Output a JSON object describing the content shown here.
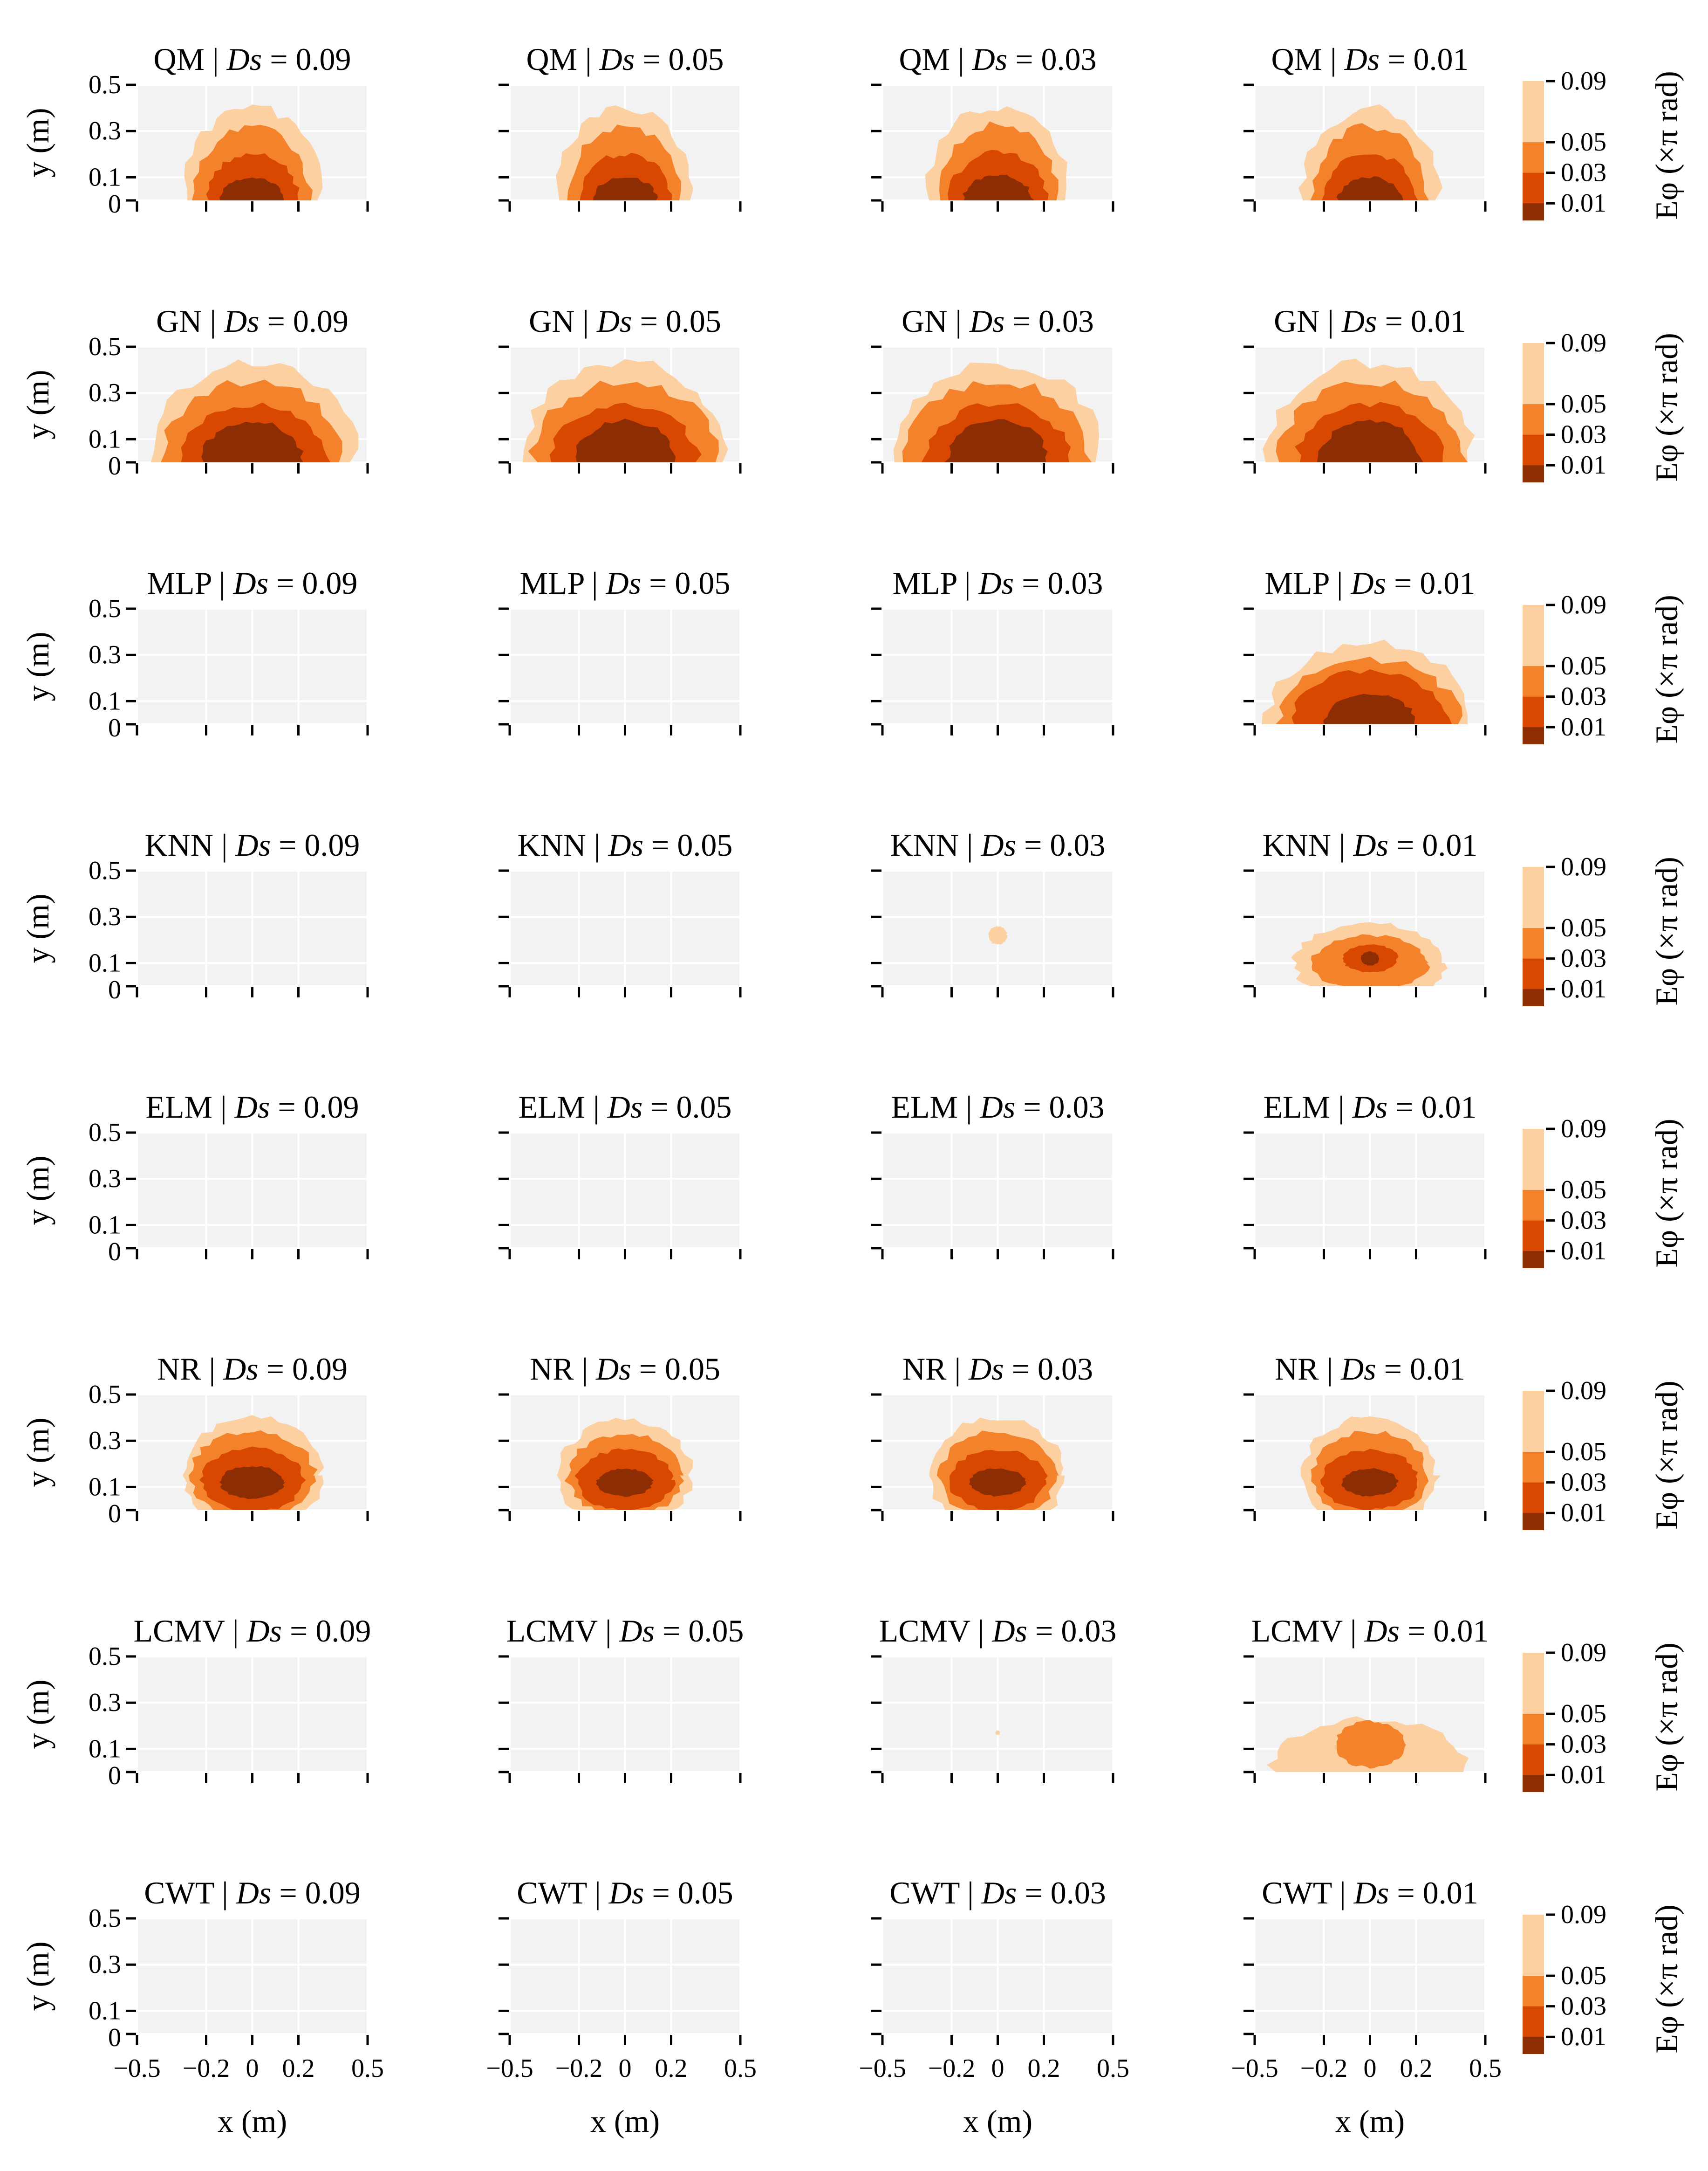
{
  "figure": {
    "colors": {
      "panel_bg": "#f2f2f2",
      "grid": "#ffffff",
      "level_1": "#8c2d04",
      "level_2": "#d94801",
      "level_3": "#f3822b",
      "level_4": "#fdd0a2"
    },
    "x_axis_label": "x (m)",
    "y_axis_label": "y (m)",
    "x_ticks": [
      "−0.5",
      "−0.2",
      "0",
      "0.2",
      "0.5"
    ],
    "y_ticks": [
      "0.5",
      "0.3",
      "0.1",
      "0"
    ],
    "colorbar": {
      "ticks": [
        "0.09",
        "0.05",
        "0.03",
        "0.01"
      ],
      "label": "Eφ (×π rad)"
    }
  },
  "chart_data": {
    "type": "contour",
    "description": "Phase error E_phi contour maps for 8 methods at 4 noise levels D_s; x in [-0.5, 0.5] m, y in [0, 0.5] m",
    "x_range": [
      -0.5,
      0.5
    ],
    "y_range": [
      0,
      0.5
    ],
    "x_ticks": [
      -0.5,
      -0.2,
      0,
      0.2,
      0.5
    ],
    "y_ticks": [
      0,
      0.1,
      0.3,
      0.5
    ],
    "contour_levels": [
      0.01,
      0.03,
      0.05,
      0.09
    ],
    "methods": [
      "QM",
      "GN",
      "MLP",
      "KNN",
      "ELM",
      "NR",
      "LCMV",
      "CWT"
    ],
    "noise_levels": [
      "0.09",
      "0.05",
      "0.03",
      "0.01"
    ],
    "panels": [
      {
        "method": "QM",
        "ds": "0.09",
        "regions": [
          {
            "level": 4,
            "rx": 0.3,
            "ry": 0.4,
            "cy": 0
          },
          {
            "level": 3,
            "rx": 0.25,
            "ry": 0.32,
            "cy": 0
          },
          {
            "level": 2,
            "rx": 0.2,
            "ry": 0.2,
            "cy": 0
          },
          {
            "level": 1,
            "rx": 0.14,
            "ry": 0.1,
            "cy": 0
          }
        ]
      },
      {
        "method": "QM",
        "ds": "0.05",
        "regions": [
          {
            "level": 4,
            "rx": 0.3,
            "ry": 0.4,
            "cy": 0
          },
          {
            "level": 3,
            "rx": 0.25,
            "ry": 0.32,
            "cy": 0
          },
          {
            "level": 2,
            "rx": 0.2,
            "ry": 0.2,
            "cy": 0
          },
          {
            "level": 1,
            "rx": 0.14,
            "ry": 0.1,
            "cy": 0
          }
        ]
      },
      {
        "method": "QM",
        "ds": "0.03",
        "regions": [
          {
            "level": 4,
            "rx": 0.31,
            "ry": 0.41,
            "cy": 0
          },
          {
            "level": 3,
            "rx": 0.26,
            "ry": 0.33,
            "cy": 0
          },
          {
            "level": 2,
            "rx": 0.21,
            "ry": 0.21,
            "cy": 0
          },
          {
            "level": 1,
            "rx": 0.15,
            "ry": 0.11,
            "cy": 0
          }
        ]
      },
      {
        "method": "QM",
        "ds": "0.01",
        "regions": [
          {
            "level": 4,
            "rx": 0.3,
            "ry": 0.4,
            "cy": 0
          },
          {
            "level": 3,
            "rx": 0.25,
            "ry": 0.32,
            "cy": 0
          },
          {
            "level": 2,
            "rx": 0.2,
            "ry": 0.2,
            "cy": 0
          },
          {
            "level": 1,
            "rx": 0.14,
            "ry": 0.1,
            "cy": 0
          }
        ]
      },
      {
        "method": "GN",
        "ds": "0.09",
        "regions": [
          {
            "level": 4,
            "rx": 0.45,
            "ry": 0.43,
            "cy": 0
          },
          {
            "level": 3,
            "rx": 0.4,
            "ry": 0.35,
            "cy": 0
          },
          {
            "level": 2,
            "rx": 0.32,
            "ry": 0.25,
            "cy": 0
          },
          {
            "level": 1,
            "rx": 0.22,
            "ry": 0.18,
            "cy": 0
          }
        ]
      },
      {
        "method": "GN",
        "ds": "0.05",
        "regions": [
          {
            "level": 4,
            "rx": 0.45,
            "ry": 0.43,
            "cy": 0
          },
          {
            "level": 3,
            "rx": 0.4,
            "ry": 0.35,
            "cy": 0
          },
          {
            "level": 2,
            "rx": 0.32,
            "ry": 0.25,
            "cy": 0
          },
          {
            "level": 1,
            "rx": 0.22,
            "ry": 0.18,
            "cy": 0
          }
        ]
      },
      {
        "method": "GN",
        "ds": "0.03",
        "regions": [
          {
            "level": 4,
            "rx": 0.45,
            "ry": 0.43,
            "cy": 0
          },
          {
            "level": 3,
            "rx": 0.4,
            "ry": 0.35,
            "cy": 0
          },
          {
            "level": 2,
            "rx": 0.32,
            "ry": 0.25,
            "cy": 0
          },
          {
            "level": 1,
            "rx": 0.22,
            "ry": 0.18,
            "cy": 0
          }
        ]
      },
      {
        "method": "GN",
        "ds": "0.01",
        "regions": [
          {
            "level": 4,
            "rx": 0.45,
            "ry": 0.43,
            "cy": 0
          },
          {
            "level": 3,
            "rx": 0.4,
            "ry": 0.35,
            "cy": 0
          },
          {
            "level": 2,
            "rx": 0.32,
            "ry": 0.25,
            "cy": 0
          },
          {
            "level": 1,
            "rx": 0.22,
            "ry": 0.18,
            "cy": 0
          }
        ]
      },
      {
        "method": "MLP",
        "ds": "0.09",
        "regions": []
      },
      {
        "method": "MLP",
        "ds": "0.05",
        "regions": []
      },
      {
        "method": "MLP",
        "ds": "0.03",
        "regions": []
      },
      {
        "method": "MLP",
        "ds": "0.01",
        "regions": [
          {
            "level": 4,
            "rx": 0.45,
            "ry": 0.35,
            "cy": 0
          },
          {
            "level": 3,
            "rx": 0.39,
            "ry": 0.28,
            "cy": 0
          },
          {
            "level": 2,
            "rx": 0.34,
            "ry": 0.23,
            "cy": 0
          },
          {
            "level": 1,
            "rx": 0.2,
            "ry": 0.13,
            "cy": 0
          }
        ]
      },
      {
        "method": "KNN",
        "ds": "0.09",
        "regions": []
      },
      {
        "method": "KNN",
        "ds": "0.05",
        "regions": []
      },
      {
        "method": "KNN",
        "ds": "0.03",
        "regions": [
          {
            "level": 4,
            "rx": 0.04,
            "ry": 0.04,
            "cy": 0.22
          }
        ]
      },
      {
        "method": "KNN",
        "ds": "0.01",
        "regions": [
          {
            "level": 4,
            "rx": 0.33,
            "ry": 0.17,
            "cy": 0.1
          },
          {
            "level": 3,
            "rx": 0.25,
            "ry": 0.12,
            "cy": 0.1
          },
          {
            "level": 2,
            "rx": 0.12,
            "ry": 0.06,
            "cy": 0.12
          },
          {
            "level": 1,
            "rx": 0.04,
            "ry": 0.03,
            "cy": 0.12
          }
        ]
      },
      {
        "method": "ELM",
        "ds": "0.09",
        "regions": []
      },
      {
        "method": "ELM",
        "ds": "0.05",
        "regions": []
      },
      {
        "method": "ELM",
        "ds": "0.03",
        "regions": []
      },
      {
        "method": "ELM",
        "ds": "0.01",
        "regions": []
      },
      {
        "method": "NR",
        "ds": "0.09",
        "regions": [
          {
            "level": 4,
            "rx": 0.3,
            "ry": 0.25,
            "cy": 0.15
          },
          {
            "level": 3,
            "rx": 0.27,
            "ry": 0.19,
            "cy": 0.15
          },
          {
            "level": 2,
            "rx": 0.22,
            "ry": 0.14,
            "cy": 0.13
          },
          {
            "level": 1,
            "rx": 0.14,
            "ry": 0.07,
            "cy": 0.12
          }
        ]
      },
      {
        "method": "NR",
        "ds": "0.05",
        "regions": [
          {
            "level": 4,
            "rx": 0.29,
            "ry": 0.24,
            "cy": 0.15
          },
          {
            "level": 3,
            "rx": 0.25,
            "ry": 0.18,
            "cy": 0.15
          },
          {
            "level": 2,
            "rx": 0.21,
            "ry": 0.13,
            "cy": 0.13
          },
          {
            "level": 1,
            "rx": 0.12,
            "ry": 0.06,
            "cy": 0.12
          }
        ]
      },
      {
        "method": "NR",
        "ds": "0.03",
        "regions": [
          {
            "level": 4,
            "rx": 0.29,
            "ry": 0.25,
            "cy": 0.15
          },
          {
            "level": 3,
            "rx": 0.25,
            "ry": 0.19,
            "cy": 0.15
          },
          {
            "level": 2,
            "rx": 0.21,
            "ry": 0.13,
            "cy": 0.13
          },
          {
            "level": 1,
            "rx": 0.12,
            "ry": 0.06,
            "cy": 0.12
          }
        ]
      },
      {
        "method": "NR",
        "ds": "0.01",
        "regions": [
          {
            "level": 4,
            "rx": 0.29,
            "ry": 0.25,
            "cy": 0.15
          },
          {
            "level": 3,
            "rx": 0.25,
            "ry": 0.19,
            "cy": 0.15
          },
          {
            "level": 2,
            "rx": 0.21,
            "ry": 0.13,
            "cy": 0.13
          },
          {
            "level": 1,
            "rx": 0.12,
            "ry": 0.06,
            "cy": 0.12
          }
        ]
      },
      {
        "method": "LCMV",
        "ds": "0.09",
        "regions": []
      },
      {
        "method": "LCMV",
        "ds": "0.05",
        "regions": []
      },
      {
        "method": "LCMV",
        "ds": "0.03",
        "regions": [
          {
            "level": 4,
            "rx": 0.01,
            "ry": 0.01,
            "cy": 0.17
          }
        ]
      },
      {
        "method": "LCMV",
        "ds": "0.01",
        "regions": [
          {
            "level": 4,
            "rx": 0.43,
            "ry": 0.23,
            "cy": 0
          },
          {
            "level": 3,
            "rx": 0.15,
            "ry": 0.1,
            "cy": 0.12
          }
        ]
      },
      {
        "method": "CWT",
        "ds": "0.09",
        "regions": []
      },
      {
        "method": "CWT",
        "ds": "0.05",
        "regions": []
      },
      {
        "method": "CWT",
        "ds": "0.03",
        "regions": []
      },
      {
        "method": "CWT",
        "ds": "0.01",
        "regions": []
      }
    ]
  }
}
